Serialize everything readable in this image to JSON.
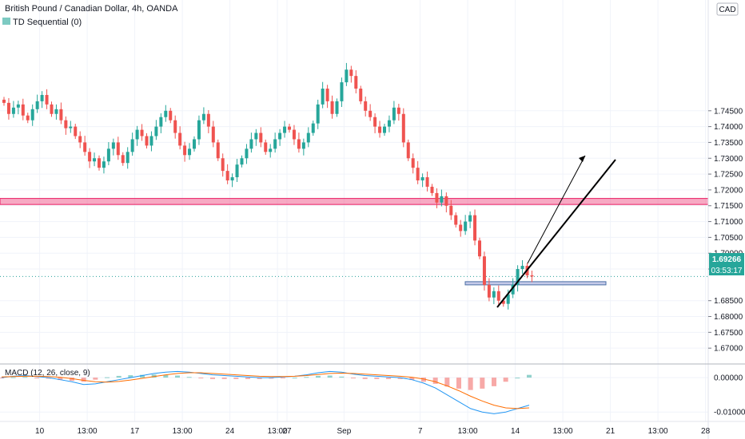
{
  "header": {
    "symbol": "British Pound / Canadian Dollar, 4h, OANDA",
    "indicator": "TD Sequential (0)"
  },
  "currency_badge": "CAD",
  "price_tag": {
    "price": "1.69266",
    "countdown": "03:53:17"
  },
  "macd": {
    "label": "MACD (12, 26, close, 9)",
    "ticks": [
      "0.00000",
      "-0.01000"
    ]
  },
  "colors": {
    "up": "#26a69a",
    "down": "#ef5350",
    "accent": "#2aa19c",
    "resistance_zone": "#f06292",
    "support_line": "#4a6fa5",
    "macd_line": "#2196f3",
    "signal_line": "#ff6d00"
  },
  "chart_data": {
    "type": "candlestick",
    "title": "British Pound / Canadian Dollar, 4h, OANDA",
    "ylim": [
      1.665,
      1.78
    ],
    "y_ticks": [
      1.745,
      1.74,
      1.735,
      1.73,
      1.725,
      1.72,
      1.715,
      1.71,
      1.705,
      1.7,
      1.695,
      1.685,
      1.68,
      1.675,
      1.67
    ],
    "y_tick_labels": [
      "1.74500",
      "1.74000",
      "1.73500",
      "1.73000",
      "1.72500",
      "1.72000",
      "1.71500",
      "1.71000",
      "1.70500",
      "1.70000",
      "1.69500",
      "1.68500",
      "1.68000",
      "1.67500",
      "1.67000"
    ],
    "x_ticks": [
      {
        "label": "10",
        "slot": 8
      },
      {
        "label": "13:00",
        "slot": 18
      },
      {
        "label": "17",
        "slot": 28
      },
      {
        "label": "13:00",
        "slot": 38
      },
      {
        "label": "24",
        "slot": 48
      },
      {
        "label": "13:00",
        "slot": 58
      },
      {
        "label": "27",
        "slot": 60
      },
      {
        "label": "Sep",
        "slot": 72
      },
      {
        "label": "7",
        "slot": 88
      },
      {
        "label": "13:00",
        "slot": 98
      },
      {
        "label": "14",
        "slot": 108
      },
      {
        "label": "13:00",
        "slot": 118
      },
      {
        "label": "21",
        "slot": 128
      },
      {
        "label": "13:00",
        "slot": 138
      },
      {
        "label": "28",
        "slot": 148
      }
    ],
    "current_price": 1.69266,
    "resistance_zone": [
      1.7159,
      1.7168
    ],
    "support_level": 1.6905,
    "closes": [
      1.7475,
      1.744,
      1.746,
      1.747,
      1.7435,
      1.742,
      1.7455,
      1.748,
      1.75,
      1.747,
      1.744,
      1.7455,
      1.742,
      1.7395,
      1.74,
      1.737,
      1.735,
      1.732,
      1.729,
      1.73,
      1.727,
      1.729,
      1.733,
      1.735,
      1.731,
      1.7285,
      1.732,
      1.736,
      1.739,
      1.737,
      1.734,
      1.737,
      1.74,
      1.743,
      1.745,
      1.742,
      1.738,
      1.734,
      1.731,
      1.733,
      1.736,
      1.742,
      1.744,
      1.74,
      1.735,
      1.73,
      1.726,
      1.723,
      1.724,
      1.728,
      1.73,
      1.733,
      1.736,
      1.738,
      1.735,
      1.732,
      1.733,
      1.736,
      1.738,
      1.74,
      1.739,
      1.736,
      1.733,
      1.735,
      1.738,
      1.741,
      1.747,
      1.752,
      1.748,
      1.744,
      1.748,
      1.754,
      1.758,
      1.756,
      1.752,
      1.748,
      1.745,
      1.743,
      1.74,
      1.738,
      1.74,
      1.742,
      1.746,
      1.744,
      1.735,
      1.73,
      1.727,
      1.723,
      1.724,
      1.721,
      1.719,
      1.716,
      1.718,
      1.715,
      1.712,
      1.709,
      1.707,
      1.71,
      1.712,
      1.704,
      1.699,
      1.69,
      1.686,
      1.688,
      1.685,
      1.684,
      1.687,
      1.69,
      1.695,
      1.696,
      1.693,
      1.69266
    ],
    "macd_values": [
      0.0,
      0.0004,
      0.0006,
      0.0003,
      0.0,
      -0.0006,
      -0.0012,
      -0.002,
      -0.0018,
      -0.0012,
      -0.0006,
      0.0,
      0.0006,
      0.0012,
      0.0016,
      0.0018,
      0.0016,
      0.0012,
      0.0008,
      0.0006,
      0.0004,
      0.0002,
      0.0,
      0.0,
      0.0002,
      0.0004,
      0.0008,
      0.0014,
      0.0018,
      0.0016,
      0.001,
      0.0006,
      0.0004,
      0.0002,
      0.0,
      -0.0006,
      -0.0016,
      -0.003,
      -0.005,
      -0.007,
      -0.009,
      -0.01,
      -0.0105,
      -0.01,
      -0.009,
      -0.008
    ],
    "signal_values": [
      0.0002,
      0.0003,
      0.0004,
      0.0004,
      0.0003,
      0.0001,
      -0.0003,
      -0.0008,
      -0.0012,
      -0.0013,
      -0.0011,
      -0.0007,
      -0.0002,
      0.0003,
      0.0008,
      0.0012,
      0.0014,
      0.0014,
      0.0012,
      0.001,
      0.0008,
      0.0006,
      0.0004,
      0.0003,
      0.0003,
      0.0004,
      0.0006,
      0.0009,
      0.0012,
      0.0013,
      0.0012,
      0.001,
      0.0008,
      0.0006,
      0.0004,
      0.0001,
      -0.0004,
      -0.0012,
      -0.0024,
      -0.0038,
      -0.0054,
      -0.0068,
      -0.008,
      -0.0088,
      -0.009,
      -0.0088
    ],
    "macd_ylim": [
      -0.0125,
      0.0035
    ]
  }
}
